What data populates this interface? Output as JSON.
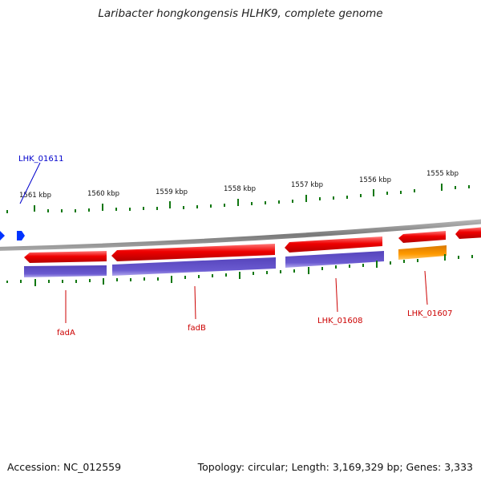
{
  "title": "Laribacter hongkongensis HLHK9, complete genome",
  "footer": {
    "accession": "Accession: NC_012559",
    "summary": "Topology: circular; Length: 3,169,329 bp; Genes: 3,333"
  },
  "scale_labels": [
    "1561 kbp",
    "1560 kbp",
    "1559 kbp",
    "1558 kbp",
    "1557 kbp",
    "1556 kbp",
    "1555 kbp"
  ],
  "gene_labels": [
    {
      "text": "LHK_01611",
      "color": "#0000cc"
    },
    {
      "text": "fadA",
      "color": "#cc0000"
    },
    {
      "text": "fadB",
      "color": "#cc0000"
    },
    {
      "text": "LHK_01608",
      "color": "#cc0000"
    },
    {
      "text": "LHK_01607",
      "color": "#cc0000"
    }
  ],
  "colors": {
    "gene": "#ee0000",
    "gene_highlight": "#ff6666",
    "cds_purple": "#6655cc",
    "cds_orange": "#ff9900",
    "tick": "#117711",
    "backbone": "#888888",
    "blue_feature": "#0033ff"
  }
}
